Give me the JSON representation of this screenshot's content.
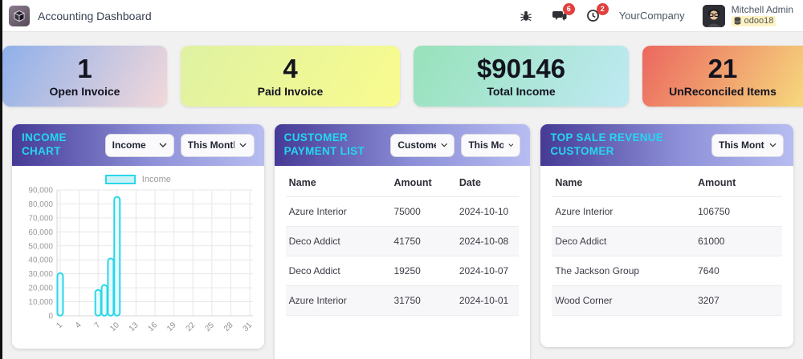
{
  "header": {
    "app_title": "Accounting Dashboard",
    "company": "YourCompany",
    "user_name": "Mitchell Admin",
    "database": "odoo18",
    "messages_badge": "6",
    "activities_badge": "2"
  },
  "kpis": [
    {
      "value": "1",
      "label": "Open Invoice",
      "gradient": [
        "#8fb0ea",
        "#f2d8da"
      ]
    },
    {
      "value": "4",
      "label": "Paid Invoice",
      "gradient": [
        "#dff2a2",
        "#f9fb8e"
      ]
    },
    {
      "value": "$90146",
      "label": "Total Income",
      "gradient": [
        "#97e2ba",
        "#bfe9f3"
      ]
    },
    {
      "value": "21",
      "label": "UnReconciled Items",
      "gradient": [
        "#eb675f",
        "#f6d87d"
      ]
    }
  ],
  "income_panel": {
    "title": "INCOME CHART",
    "type_filter": "Income",
    "period_filter": "This Month"
  },
  "chart_data": {
    "type": "bar",
    "title": "INCOME CHART",
    "legend": "Income",
    "legend_position": "top",
    "grid": true,
    "x_range": [
      1,
      31
    ],
    "x_ticks": [
      1,
      4,
      7,
      10,
      13,
      16,
      19,
      22,
      25,
      28,
      31
    ],
    "ylim": [
      0,
      90000
    ],
    "y_step": 10000,
    "bar_stroke": "#2bd7e8",
    "bar_fill": "#e8fbfd",
    "series": [
      {
        "name": "Income",
        "points": [
          {
            "x": 1,
            "y": 30500
          },
          {
            "x": 7,
            "y": 18500
          },
          {
            "x": 8,
            "y": 22000
          },
          {
            "x": 9,
            "y": 41000
          },
          {
            "x": 10,
            "y": 85000
          }
        ]
      }
    ]
  },
  "payments": {
    "title": "CUSTOMER PAYMENT LIST",
    "customer_filter": "Customer",
    "period_filter": "This Month",
    "columns": [
      "Name",
      "Amount",
      "Date"
    ],
    "rows": [
      {
        "name": "Azure Interior",
        "amount": "75000",
        "date": "2024-10-10"
      },
      {
        "name": "Deco Addict",
        "amount": "41750",
        "date": "2024-10-08"
      },
      {
        "name": "Deco Addict",
        "amount": "19250",
        "date": "2024-10-07"
      },
      {
        "name": "Azure Interior",
        "amount": "31750",
        "date": "2024-10-01"
      }
    ]
  },
  "top_customers": {
    "title": "TOP SALE REVENUE CUSTOMER",
    "period_filter": "This Month",
    "columns": [
      "Name",
      "Amount"
    ],
    "rows": [
      {
        "name": "Azure Interior",
        "amount": "106750"
      },
      {
        "name": "Deco Addict",
        "amount": "61000"
      },
      {
        "name": "The Jackson Group",
        "amount": "7640"
      },
      {
        "name": "Wood Corner",
        "amount": "3207"
      }
    ]
  },
  "colors": {
    "panel_header_start": "#453a96",
    "panel_header_end": "#b7bdf1",
    "panel_title": "#25d7f0",
    "badge_red": "#e0413e",
    "page_bg": "#f1f1f2"
  }
}
